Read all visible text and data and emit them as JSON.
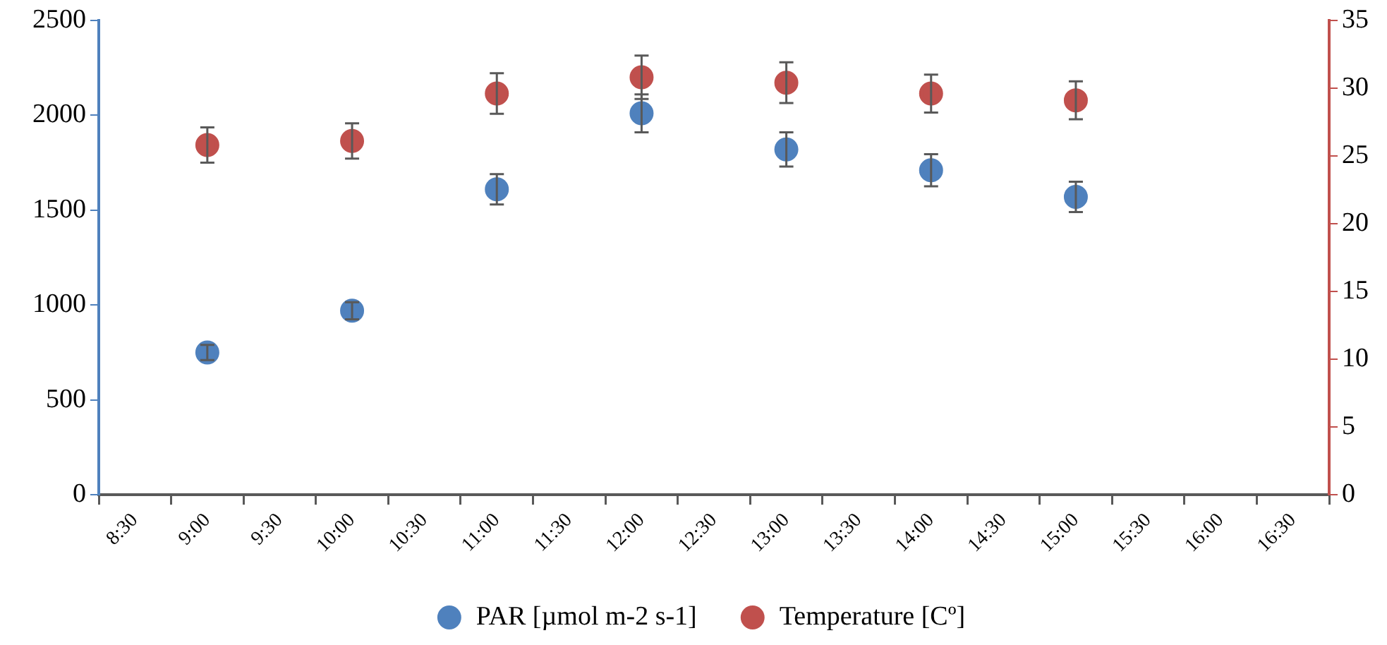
{
  "chart_data": {
    "type": "scatter",
    "categories": [
      "8:30",
      "9:00",
      "9:30",
      "10:00",
      "10:30",
      "11:00",
      "11:30",
      "12:00",
      "12:30",
      "13:00",
      "13:30",
      "14:00",
      "14:30",
      "15:00",
      "15:30",
      "16:00",
      "16:30"
    ],
    "series": [
      {
        "name": "PAR [µmol m-2 s-1]",
        "color": "#4f81bd",
        "values": [
          null,
          750,
          null,
          970,
          null,
          1610,
          null,
          2010,
          null,
          1820,
          null,
          1710,
          null,
          1570,
          null,
          null,
          null
        ],
        "errors": [
          null,
          40,
          null,
          45,
          null,
          80,
          null,
          100,
          null,
          90,
          null,
          85,
          null,
          80,
          null,
          null,
          null
        ]
      },
      {
        "name": "Temperature [Cº]",
        "color": "#c0504d",
        "axis": "y2",
        "values": [
          null,
          25.8,
          null,
          26.1,
          null,
          29.6,
          null,
          30.8,
          null,
          30.4,
          null,
          29.6,
          null,
          29.1,
          null,
          null,
          null
        ],
        "errors": [
          null,
          1.3,
          null,
          1.3,
          null,
          1.5,
          null,
          1.6,
          null,
          1.5,
          null,
          1.4,
          null,
          1.4,
          null,
          null,
          null
        ]
      }
    ],
    "ylim": [
      0,
      2500
    ],
    "yticks": [
      0,
      500,
      1000,
      1500,
      2000,
      2500
    ],
    "y2lim": [
      0,
      35
    ],
    "y2ticks": [
      0,
      5,
      10,
      15,
      20,
      25,
      30,
      35
    ],
    "grid": false,
    "legend": "bottom",
    "marker": "circle"
  }
}
